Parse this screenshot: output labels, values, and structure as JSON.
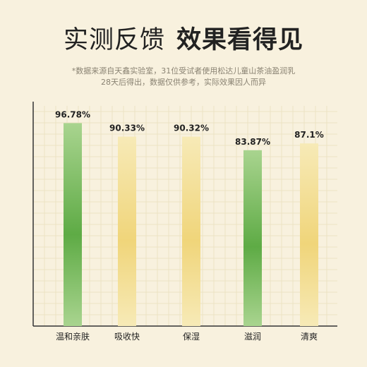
{
  "header": {
    "title_part1": "实测反馈",
    "title_part2": "效果看得见",
    "note_line1": "*数据来源自天鑫实验室，31位受试者使用松达儿童山茶油盈润乳",
    "note_line2": "28天后得出，数据仅供参考，实际效果因人而异"
  },
  "chart_data": {
    "type": "bar",
    "categories": [
      "温和亲肤",
      "吸收快",
      "保湿",
      "滋润",
      "清爽"
    ],
    "values": [
      96.78,
      90.33,
      90.32,
      83.87,
      87.1
    ],
    "value_labels": [
      "96.78%",
      "90.33%",
      "90.32%",
      "83.87%",
      "87.1%"
    ],
    "bar_styles": [
      "green",
      "yellow",
      "yellow",
      "green",
      "yellow"
    ],
    "ylim": [
      0,
      100
    ],
    "grid": true,
    "colors": {
      "green_top": "#a9d48f",
      "green_mid": "#5eab45",
      "green_bottom": "#a9d48f",
      "yellow_top": "#f7eab7",
      "yellow_mid": "#f0d57a",
      "yellow_bottom": "#f7eab7",
      "axis": "#333333",
      "grid": "#ece2c4",
      "background": "#f8f1de"
    }
  }
}
